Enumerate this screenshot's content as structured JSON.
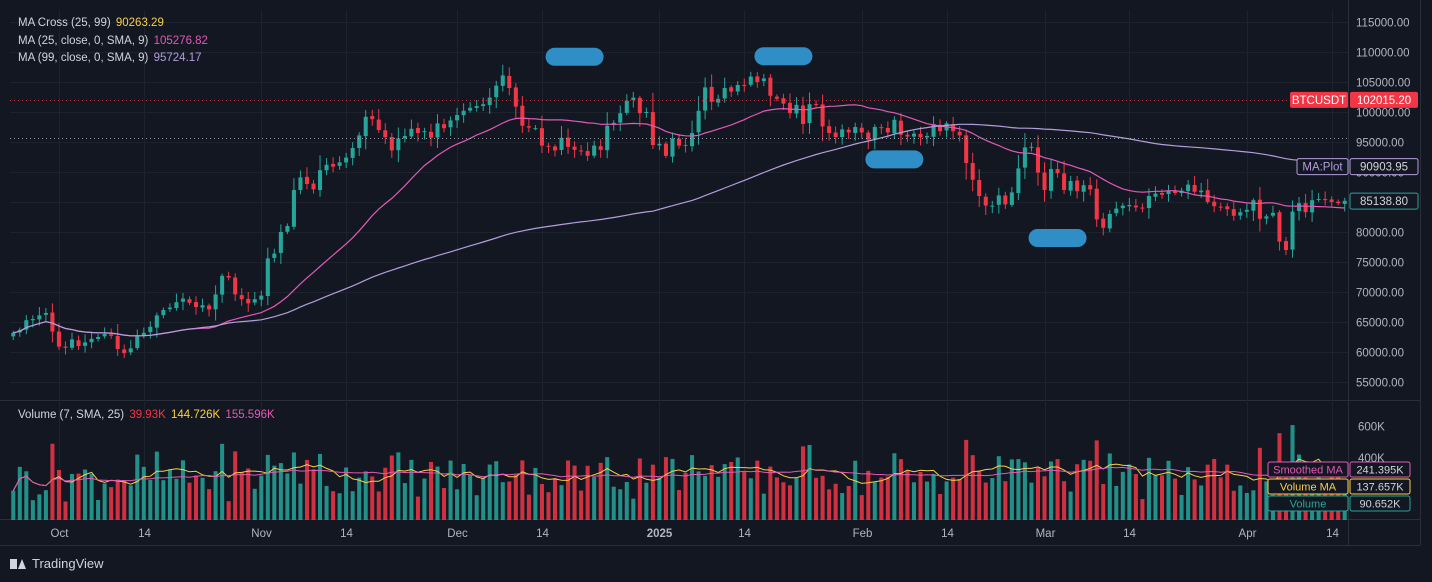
{
  "app": {
    "brand": "TradingView",
    "symbol_label": "BTCUSDT"
  },
  "legends": {
    "ma_cross": {
      "label": "MA Cross (25, 99)",
      "value": "90263.29",
      "color": "#f7d046"
    },
    "ma25": {
      "label": "MA (25, close, 0, SMA, 9)",
      "value": "105276.82",
      "color": "#e458b6"
    },
    "ma99": {
      "label": "MA (99, close, 0, SMA, 9)",
      "value": "95724.17",
      "color": "#b39ddb"
    },
    "volume": {
      "label": "Volume (7, SMA, 25)",
      "v1": "39.93K",
      "v2": "144.726K",
      "v3": "155.596K",
      "c1": "#f23645",
      "c2": "#f7d046",
      "c3": "#e458b6"
    }
  },
  "price_axis": {
    "ticks": [
      "115000.00",
      "110000.00",
      "105000.00",
      "100000.00",
      "95000.00",
      "90000.00",
      "85000.00",
      "80000.00",
      "75000.00",
      "70000.00",
      "65000.00",
      "60000.00",
      "55000.00"
    ],
    "tick_values": [
      115000,
      110000,
      105000,
      100000,
      95000,
      90000,
      85000,
      80000,
      75000,
      70000,
      65000,
      60000,
      55000
    ],
    "ylim": [
      52000,
      117000
    ],
    "labels": {
      "symbol": {
        "name": "BTCUSDT",
        "price": "102015.20",
        "value": 102015.2,
        "color": "#f23645"
      },
      "ma_plot": {
        "name": "MA:Plot",
        "price": "90903.95",
        "value": 90903.95,
        "color": "#b39ddb"
      },
      "last": {
        "price": "85138.80",
        "value": 85138.8,
        "color": "#26a69a"
      },
      "dotted_line_value": 95724
    }
  },
  "volume_axis": {
    "ticks": [
      "600K",
      "400K"
    ],
    "tick_values": [
      600000,
      400000
    ],
    "max": 720000,
    "labels": {
      "smoothed": {
        "name": "Smoothed MA",
        "value": "241.395K",
        "color": "#e458b6"
      },
      "vma": {
        "name": "Volume MA",
        "value": "137.657K",
        "color": "#f7d046"
      },
      "vol": {
        "name": "Volume",
        "value": "90.652K",
        "color": "#26a69a"
      }
    }
  },
  "time_axis": {
    "labels": [
      {
        "text": "Oct",
        "idx": 7
      },
      {
        "text": "14",
        "idx": 20
      },
      {
        "text": "Nov",
        "idx": 38
      },
      {
        "text": "14",
        "idx": 51
      },
      {
        "text": "Dec",
        "idx": 68
      },
      {
        "text": "14",
        "idx": 81
      },
      {
        "text": "2025",
        "idx": 99
      },
      {
        "text": "14",
        "idx": 112
      },
      {
        "text": "Feb",
        "idx": 130
      },
      {
        "text": "14",
        "idx": 143
      },
      {
        "text": "Mar",
        "idx": 158
      },
      {
        "text": "14",
        "idx": 171
      },
      {
        "text": "Apr",
        "idx": 189
      },
      {
        "text": "14",
        "idx": 202
      }
    ]
  },
  "colors": {
    "up": "#26a69a",
    "down": "#f23645",
    "ma25": "#e458b6",
    "ma99": "#b39ddb",
    "vma": "#f7d046",
    "highlight": "#2e8ec5"
  },
  "highlights": [
    {
      "idx": 86,
      "price": 109200
    },
    {
      "idx": 118,
      "price": 109300
    },
    {
      "idx": 135,
      "price": 92100
    },
    {
      "idx": 160,
      "price": 79000
    }
  ],
  "chart_data": {
    "type": "candlestick",
    "x_start": "2024-09-24",
    "close": [
      63200,
      63700,
      65300,
      65500,
      66100,
      66500,
      63400,
      60900,
      60700,
      62100,
      61000,
      61600,
      62200,
      62500,
      63000,
      62700,
      60500,
      59800,
      60600,
      62600,
      63200,
      64200,
      66100,
      67000,
      67400,
      68300,
      68900,
      68200,
      67500,
      67800,
      67100,
      69600,
      72700,
      72400,
      69600,
      68800,
      68100,
      68800,
      69400,
      75600,
      76400,
      80000,
      81000,
      87000,
      89100,
      88000,
      87100,
      90300,
      91200,
      90900,
      91600,
      92400,
      94000,
      96100,
      99200,
      98800,
      97000,
      95800,
      93600,
      95600,
      96000,
      97200,
      96500,
      96800,
      95700,
      98100,
      97300,
      98600,
      99500,
      100200,
      100700,
      101000,
      101300,
      102400,
      104400,
      106100,
      104000,
      100900,
      97700,
      97400,
      97300,
      94400,
      94200,
      93600,
      95700,
      94200,
      93700,
      93500,
      92700,
      94400,
      93700,
      97700,
      98200,
      99800,
      101900,
      102400,
      99800,
      100000,
      94500,
      94700,
      92700,
      95600,
      94400,
      94400,
      96500,
      100200,
      104100,
      101700,
      102200,
      104000,
      103400,
      104500,
      104500,
      105900,
      105000,
      105600,
      102700,
      102200,
      101400,
      99800,
      101200,
      98000,
      101300,
      101200,
      97600,
      96500,
      95800,
      97100,
      96600,
      97500,
      96600,
      95400,
      97500,
      97400,
      96600,
      98700,
      96200,
      95900,
      96400,
      95800,
      96000,
      98000,
      96800,
      98100,
      96800,
      96100,
      91500,
      88700,
      86000,
      84400,
      84400,
      86100,
      84600,
      86600,
      90600,
      94100,
      94200,
      89900,
      87000,
      90500,
      89800,
      87000,
      88500,
      86800,
      87800,
      87100,
      82100,
      80700,
      83000,
      83900,
      84400,
      84500,
      84100,
      83900,
      86000,
      86400,
      86200,
      86900,
      86500,
      86900,
      87900,
      86700,
      86900,
      85000,
      84300,
      84200,
      83800,
      82700,
      83300,
      83700,
      85300,
      82200,
      82600,
      83200,
      78400,
      77000,
      83400,
      84800,
      83300,
      85300,
      85500,
      85300,
      85000,
      84800,
      85200
    ],
    "volume_note": "Volume bars colored by candle direction; values shown in K units",
    "series": [
      {
        "name": "MA (25, close, 0, SMA, 9)"
      },
      {
        "name": "MA (99, close, 0, SMA, 9)"
      },
      {
        "name": "Volume (7, SMA, 25)"
      }
    ]
  }
}
